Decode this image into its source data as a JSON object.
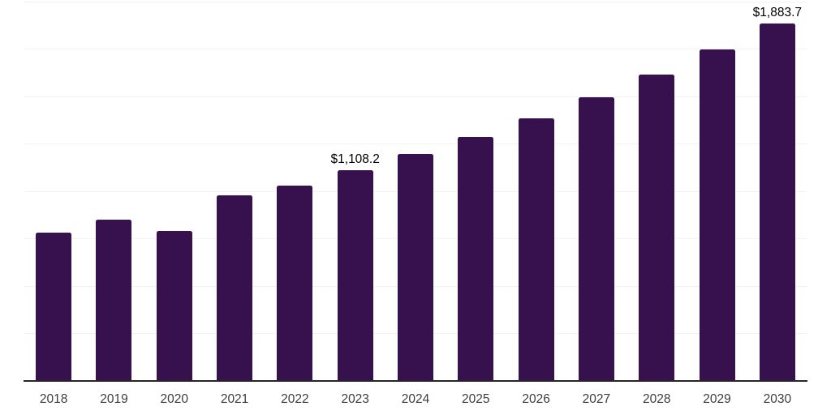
{
  "chart_data": {
    "type": "bar",
    "title": "",
    "xlabel": "",
    "ylabel": "",
    "categories": [
      "2018",
      "2019",
      "2020",
      "2021",
      "2022",
      "2023",
      "2024",
      "2025",
      "2026",
      "2027",
      "2028",
      "2029",
      "2030"
    ],
    "values": [
      782,
      848,
      788,
      976,
      1030,
      1108.2,
      1194,
      1286,
      1382,
      1496,
      1617,
      1749,
      1883.7
    ],
    "point_labels": [
      "",
      "",
      "",
      "",
      "",
      "$1,108.2",
      "",
      "",
      "",
      "",
      "",
      "",
      "$1,883.7"
    ],
    "ylim": [
      0,
      2000
    ],
    "grid_step": 250,
    "grid": true,
    "legend_position": "none",
    "y_axis_labels_visible": false,
    "colors": {
      "bar": "#36114d",
      "axis": "#262626",
      "gridline": "#f2f2f2",
      "tick_label": "#3d3d3d",
      "data_label": "#000000",
      "background": "#ffffff"
    }
  }
}
